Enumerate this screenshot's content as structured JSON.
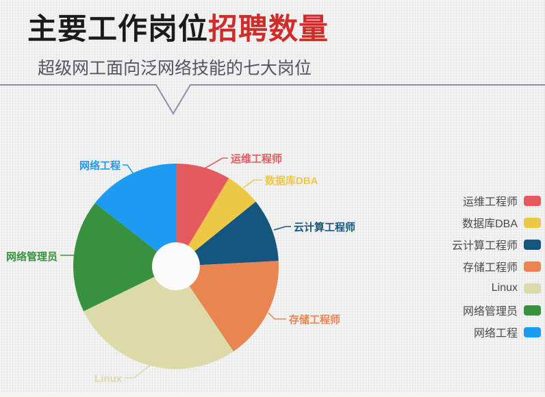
{
  "header": {
    "title_black": "主要工作岗位",
    "title_red": "招聘数量",
    "subtitle": "超级网工面向泛网络技能的七大岗位",
    "title_accent_color": "#cf2d2a",
    "divider_color": "#8a8fa6"
  },
  "chart_data": {
    "type": "pie",
    "title": "主要工作岗位招聘数量",
    "subtitle": "超级网工面向泛网络技能的七大岗位",
    "donut": true,
    "inner_radius_ratio": 0.23,
    "start_angle": "12-oclock",
    "direction": "clockwise",
    "legend_position": "right",
    "labels_on_chart": "callout-leader-lines",
    "slices": [
      {
        "label": "运维工程师",
        "color": "#e45a5f",
        "angle_deg": 31,
        "pct": 8.6
      },
      {
        "label": "数据库DBA",
        "color": "#edc845",
        "angle_deg": 20,
        "pct": 5.6
      },
      {
        "label": "云计算工程师",
        "color": "#15567e",
        "angle_deg": 36,
        "pct": 10.0
      },
      {
        "label": "存储工程师",
        "color": "#e98551",
        "angle_deg": 59,
        "pct": 16.4
      },
      {
        "label": "Linux",
        "color": "#dcdaa8",
        "angle_deg": 98,
        "pct": 27.2
      },
      {
        "label": "网络管理员",
        "color": "#38913f",
        "angle_deg": 64,
        "pct": 17.8
      },
      {
        "label": "网络工程",
        "color": "#1d9bf0",
        "angle_deg": 52,
        "pct": 14.4
      }
    ]
  }
}
